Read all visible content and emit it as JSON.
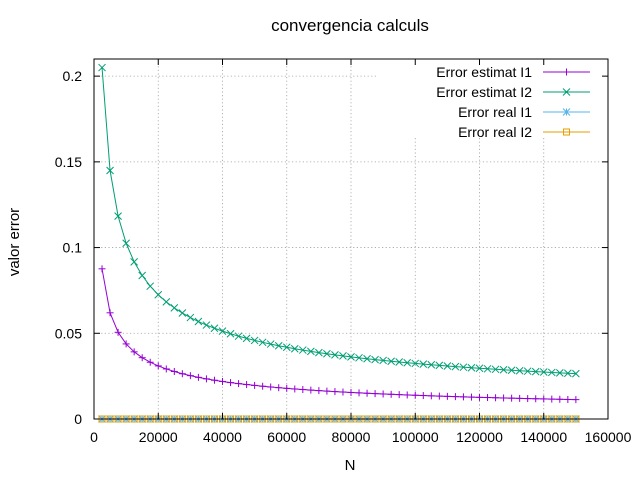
{
  "chart_data": {
    "type": "line",
    "title": "convergencia calculs",
    "xlabel": "N",
    "ylabel": "valor error",
    "xlim": [
      0,
      160000
    ],
    "ylim": [
      0,
      0.21
    ],
    "xticks": [
      0,
      20000,
      40000,
      60000,
      80000,
      100000,
      120000,
      140000,
      160000
    ],
    "yticks": [
      0,
      0.05,
      0.1,
      0.15,
      0.2
    ],
    "xtick_labels": [
      "0",
      "20000",
      "40000",
      "60000",
      "80000",
      "100000",
      "120000",
      "140000",
      "160000"
    ],
    "ytick_labels": [
      "0",
      "0.05",
      "0.1",
      "0.15",
      "0.2"
    ],
    "grid": true,
    "legend_position": "top-right",
    "x": {
      "start": 2500,
      "step": 2500,
      "count": 60
    },
    "series": [
      {
        "name": "Error estimat I1",
        "color": "#9400d3",
        "marker": "plus",
        "model": {
          "k": 4.38,
          "c": 0
        }
      },
      {
        "name": "Error estimat I2",
        "color": "#009e73",
        "marker": "cross",
        "model": {
          "k": 10.25,
          "c": 0
        }
      },
      {
        "name": "Error real I1",
        "color": "#56b4e9",
        "marker": "star",
        "model": {
          "k": 0,
          "c": 0
        }
      },
      {
        "name": "Error real I2",
        "color": "#e69f00",
        "marker": "square",
        "model": {
          "k": 0,
          "c": 0
        }
      }
    ]
  }
}
